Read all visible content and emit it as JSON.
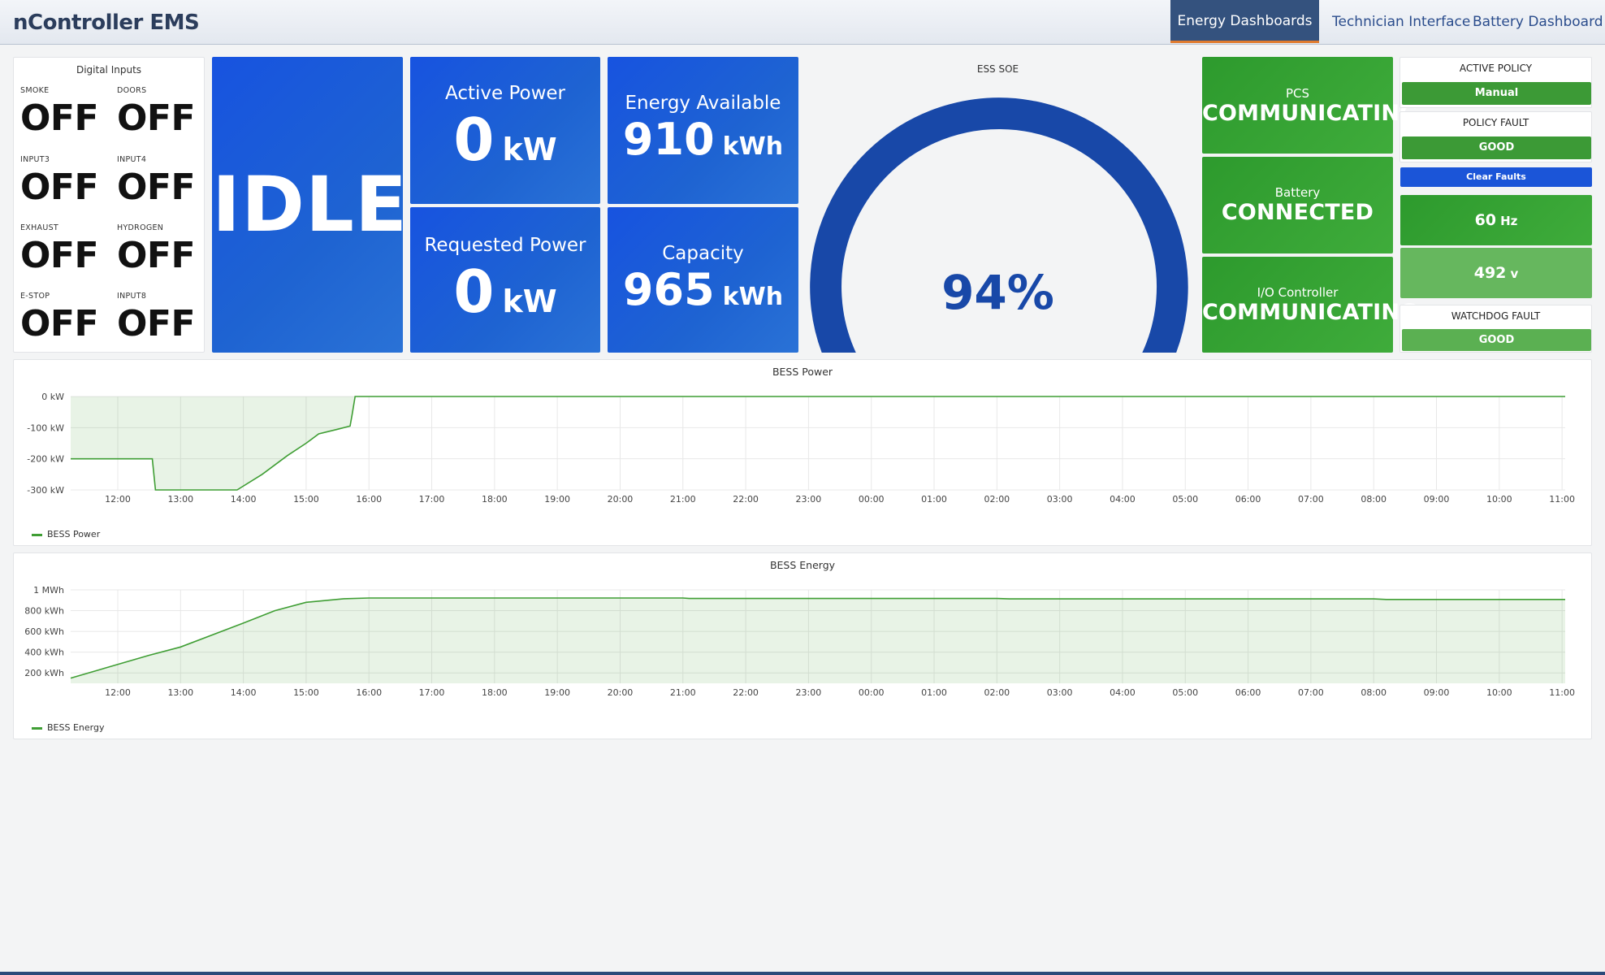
{
  "app": {
    "title": "nController EMS"
  },
  "nav": {
    "energy_dashboards": "Energy Dashboards",
    "technician_interface": "Technician Interface",
    "battery_dashboard": "Battery Dashboard"
  },
  "digital_inputs": {
    "title": "Digital Inputs",
    "items": [
      {
        "label": "SMOKE",
        "value": "OFF"
      },
      {
        "label": "DOORS",
        "value": "OFF"
      },
      {
        "label": "INPUT3",
        "value": "OFF"
      },
      {
        "label": "INPUT4",
        "value": "OFF"
      },
      {
        "label": "EXHAUST",
        "value": "OFF"
      },
      {
        "label": "HYDROGEN",
        "value": "OFF"
      },
      {
        "label": "E-STOP",
        "value": "OFF"
      },
      {
        "label": "INPUT8",
        "value": "OFF"
      }
    ]
  },
  "state": {
    "value": "IDLE"
  },
  "active_power": {
    "label": "Active Power",
    "value": "0",
    "unit": "kW"
  },
  "requested_power": {
    "label": "Requested Power",
    "value": "0",
    "unit": "kW"
  },
  "energy_available": {
    "label": "Energy Available",
    "value": "910",
    "unit": "kWh"
  },
  "capacity": {
    "label": "Capacity",
    "value": "965",
    "unit": "kWh"
  },
  "soe": {
    "title": "ESS SOE",
    "value": "94%",
    "fraction": 0.94
  },
  "status": {
    "pcs": {
      "label": "PCS",
      "value": "COMMUNICATING"
    },
    "battery": {
      "label": "Battery",
      "value": "CONNECTED"
    },
    "io": {
      "label": "I/O Controller",
      "value": "COMMUNICATING"
    }
  },
  "right": {
    "active_policy_title": "ACTIVE POLICY",
    "active_policy_value": "Manual",
    "policy_fault_title": "POLICY FAULT",
    "policy_fault_value": "GOOD",
    "clear_faults": "Clear Faults",
    "frequency_value": "60",
    "frequency_unit": "Hz",
    "voltage_value": "492",
    "voltage_unit": "v",
    "watchdog_title": "WATCHDOG FAULT",
    "watchdog_value": "GOOD"
  },
  "colors": {
    "blue_tile": "#1753e0",
    "green_tile": "#3fac3b",
    "gauge": "#1848a8",
    "line": "#3f9e34"
  },
  "chart_data": [
    {
      "type": "area",
      "title": "BESS Power",
      "legend": "BESS Power",
      "y_ticks": [
        {
          "v": 0,
          "label": "0 kW"
        },
        {
          "v": -100,
          "label": "-100 kW"
        },
        {
          "v": -200,
          "label": "-200 kW"
        },
        {
          "v": -300,
          "label": "-300 kW"
        }
      ],
      "ylim": [
        -300,
        0
      ],
      "x_ticks": [
        "12:00",
        "13:00",
        "14:00",
        "15:00",
        "16:00",
        "17:00",
        "18:00",
        "19:00",
        "20:00",
        "21:00",
        "22:00",
        "23:00",
        "00:00",
        "01:00",
        "02:00",
        "03:00",
        "04:00",
        "05:00",
        "06:00",
        "07:00",
        "08:00",
        "09:00",
        "10:00",
        "11:00"
      ],
      "x_hours_range": [
        11.25,
        35.05
      ],
      "points": [
        [
          11.25,
          -200
        ],
        [
          12.55,
          -200
        ],
        [
          12.6,
          -300
        ],
        [
          13.9,
          -300
        ],
        [
          14.3,
          -250
        ],
        [
          14.7,
          -190
        ],
        [
          15.0,
          -150
        ],
        [
          15.2,
          -120
        ],
        [
          15.5,
          -105
        ],
        [
          15.7,
          -95
        ],
        [
          15.73,
          -60
        ],
        [
          15.78,
          0
        ],
        [
          35.05,
          0
        ]
      ]
    },
    {
      "type": "area",
      "title": "BESS Energy",
      "legend": "BESS Energy",
      "y_ticks": [
        {
          "v": 1000,
          "label": "1 MWh"
        },
        {
          "v": 800,
          "label": "800 kWh"
        },
        {
          "v": 600,
          "label": "600 kWh"
        },
        {
          "v": 400,
          "label": "400 kWh"
        },
        {
          "v": 200,
          "label": "200 kWh"
        }
      ],
      "ylim": [
        100,
        1000
      ],
      "x_ticks": [
        "12:00",
        "13:00",
        "14:00",
        "15:00",
        "16:00",
        "17:00",
        "18:00",
        "19:00",
        "20:00",
        "21:00",
        "22:00",
        "23:00",
        "00:00",
        "01:00",
        "02:00",
        "03:00",
        "04:00",
        "05:00",
        "06:00",
        "07:00",
        "08:00",
        "09:00",
        "10:00",
        "11:00"
      ],
      "x_hours_range": [
        11.25,
        35.05
      ],
      "points": [
        [
          11.25,
          150
        ],
        [
          12.5,
          370
        ],
        [
          13.0,
          450
        ],
        [
          14.0,
          680
        ],
        [
          14.5,
          800
        ],
        [
          15.0,
          880
        ],
        [
          15.6,
          915
        ],
        [
          16.0,
          922
        ],
        [
          21.0,
          922
        ],
        [
          21.1,
          917
        ],
        [
          26.0,
          917
        ],
        [
          26.2,
          913
        ],
        [
          32.0,
          913
        ],
        [
          32.2,
          908
        ],
        [
          35.05,
          908
        ]
      ]
    }
  ]
}
